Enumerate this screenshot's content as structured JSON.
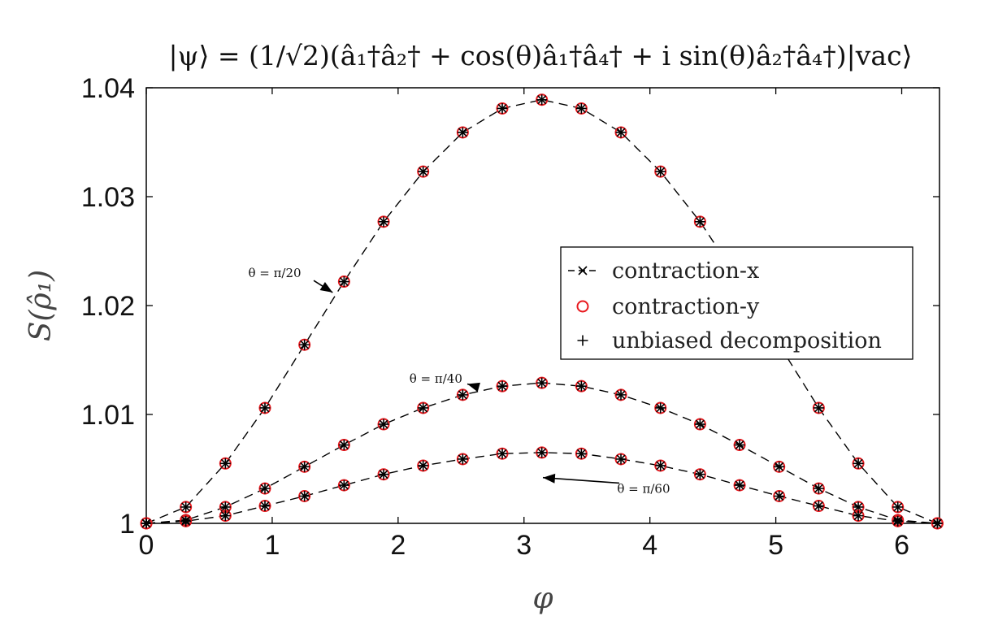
{
  "chart_data": {
    "type": "line",
    "title": "|ψ⟩ = (1/√2)(â₁†â₂† + cos(θ)â₁†â₄† + i sin(θ)â₂†â₄†)|vac⟩",
    "xlabel": "φ",
    "ylabel": "S(ρ̂₁)",
    "xlim": [
      0,
      6.3
    ],
    "ylim": [
      1.0,
      1.04
    ],
    "xticks": [
      0,
      1,
      2,
      3,
      4,
      5,
      6
    ],
    "xtick_labels": [
      "0",
      "1",
      "2",
      "3",
      "4",
      "5",
      "6"
    ],
    "yticks": [
      1.0,
      1.01,
      1.02,
      1.03,
      1.04
    ],
    "ytick_labels": [
      "1",
      "1.01",
      "1.02",
      "1.03",
      "1.04"
    ],
    "grid": false,
    "legend_position": "right",
    "legend": [
      {
        "label": "contraction-x",
        "marker": "x",
        "line": "dashed",
        "color": "#000000"
      },
      {
        "label": "contraction-y",
        "marker": "o",
        "color": "#e8191e"
      },
      {
        "label": "unbiased decomposition",
        "marker": "+",
        "color": "#000000"
      }
    ],
    "x": [
      0,
      0.3142,
      0.6283,
      0.9425,
      1.2566,
      1.5708,
      1.885,
      2.1991,
      2.5133,
      2.8274,
      3.1416,
      3.4558,
      3.7699,
      4.0841,
      4.3982,
      4.7124,
      5.0265,
      5.3407,
      5.6549,
      5.969,
      6.2832
    ],
    "series": [
      {
        "values": [
          1.0,
          1.0015,
          1.0055,
          1.0106,
          1.0164,
          1.0222,
          1.0277,
          1.0323,
          1.0359,
          1.0381,
          1.0389,
          1.0381,
          1.0359,
          1.0323,
          1.0277,
          1.0222,
          1.0164,
          1.0106,
          1.0055,
          1.0015,
          1.0
        ]
      },
      {
        "values": [
          1.0,
          1.0003,
          1.0015,
          1.0032,
          1.0052,
          1.0072,
          1.0091,
          1.0106,
          1.0118,
          1.0126,
          1.0129,
          1.0126,
          1.0118,
          1.0106,
          1.0091,
          1.0072,
          1.0052,
          1.0032,
          1.0015,
          1.0003,
          1.0
        ]
      },
      {
        "values": [
          1.0,
          1.0002,
          1.0007,
          1.0016,
          1.0025,
          1.0035,
          1.0045,
          1.0053,
          1.0059,
          1.0064,
          1.0065,
          1.0064,
          1.0059,
          1.0053,
          1.0045,
          1.0035,
          1.0025,
          1.0016,
          1.0007,
          1.0002,
          1.0
        ]
      }
    ],
    "annotations": [
      {
        "text": "θ = π/20",
        "x": 1.02,
        "y": 1.0226,
        "points_to": [
          1.48,
          1.0212
        ]
      },
      {
        "text": "θ = π/40",
        "x": 2.3,
        "y": 1.0129,
        "points_to": [
          2.55,
          1.0128
        ]
      },
      {
        "text": "θ = π/60",
        "x": 3.95,
        "y": 1.0028,
        "points_to": [
          3.15,
          1.0042
        ]
      }
    ]
  }
}
